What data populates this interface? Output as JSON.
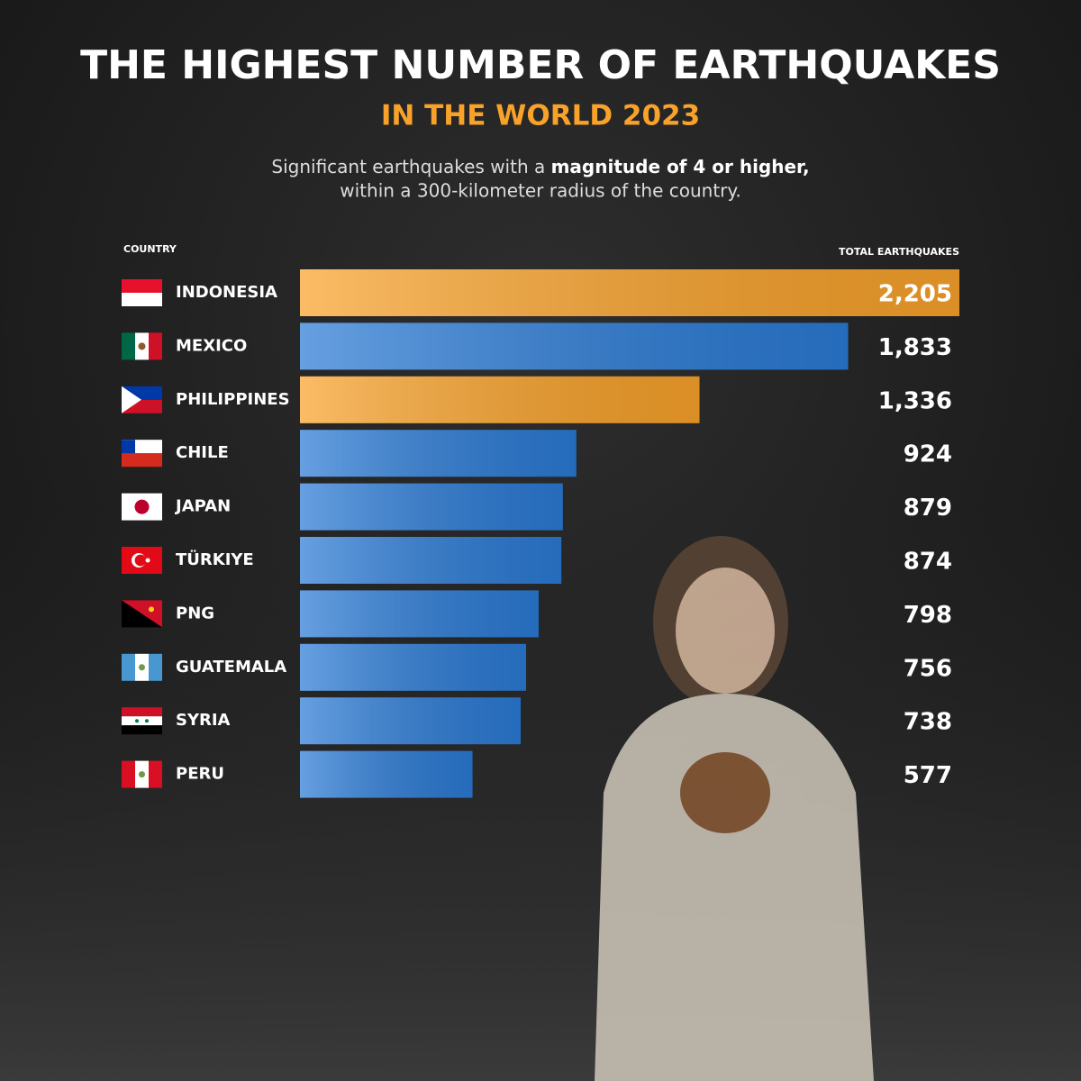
{
  "chart_data": {
    "type": "bar",
    "title": "THE HIGHEST NUMBER OF EARTHQUAKES",
    "subtitle": "IN THE WORLD 2023",
    "description": [
      "Significant earthquakes with a ",
      "magnitude of 4 or higher,",
      "within a 300-kilometer radius of the country."
    ],
    "category_header": "COUNTRY",
    "value_header": "TOTAL EARTHQUAKES",
    "orientation": "horizontal",
    "categories": [
      "INDONESIA",
      "MEXICO",
      "PHILIPPINES",
      "CHILE",
      "JAPAN",
      "TÜRKIYE",
      "PNG",
      "GUATEMALA",
      "SYRIA",
      "PERU"
    ],
    "values": [
      2205,
      1833,
      1336,
      924,
      879,
      874,
      798,
      756,
      738,
      577
    ],
    "value_labels": [
      "2,205",
      "1,833",
      "1,336",
      "924",
      "879",
      "874",
      "798",
      "756",
      "738",
      "577"
    ],
    "colors": [
      "#f9a22a",
      "#2b7bd6",
      "#f9a22a",
      "#2b7bd6",
      "#2b7bd6",
      "#2b7bd6",
      "#2b7bd6",
      "#2b7bd6",
      "#2b7bd6",
      "#2b7bd6"
    ]
  }
}
